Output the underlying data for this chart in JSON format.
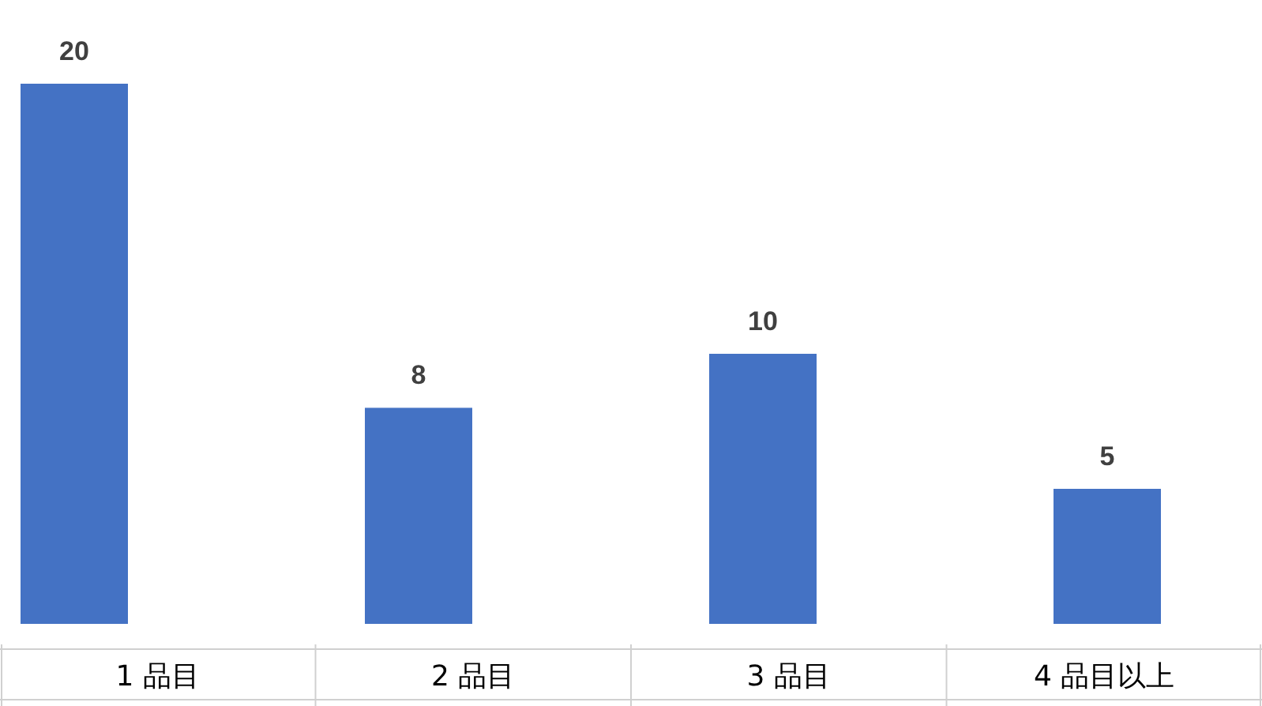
{
  "chart_data": {
    "type": "bar",
    "categories": [
      "1 品目",
      "2 品目",
      "3 品目",
      "4 品目以上"
    ],
    "values": [
      20,
      8,
      10,
      5
    ],
    "color": "#4472c4",
    "data_labels": true
  }
}
